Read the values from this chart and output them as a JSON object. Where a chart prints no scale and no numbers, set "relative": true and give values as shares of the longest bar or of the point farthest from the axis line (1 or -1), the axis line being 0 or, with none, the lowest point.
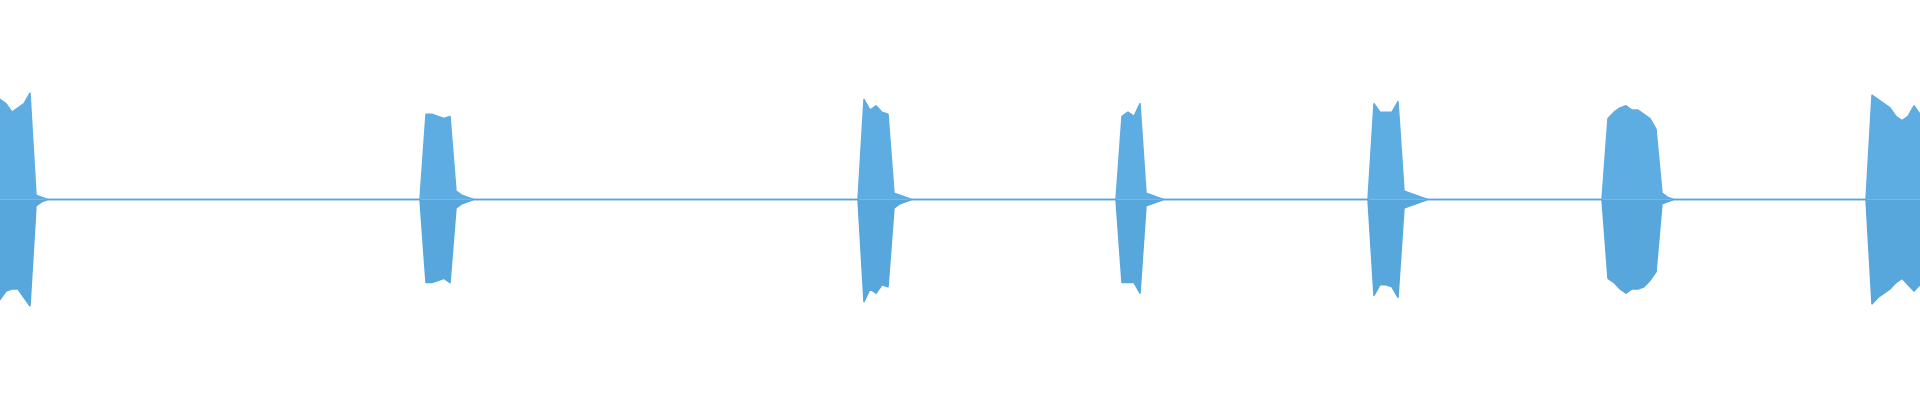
{
  "chart_data": {
    "type": "area",
    "relative": true,
    "tick_labels": false,
    "categories": [
      null,
      null,
      null,
      null,
      null,
      null,
      null,
      null,
      null,
      null,
      null,
      null,
      null,
      null,
      null,
      null,
      null,
      null,
      null,
      null,
      null,
      null,
      null,
      null,
      null,
      null,
      null,
      null,
      null,
      null,
      null,
      null,
      null,
      null,
      null,
      null,
      null,
      null,
      null,
      null,
      null,
      null,
      null,
      null,
      null,
      null,
      null,
      null,
      null,
      null,
      null,
      null,
      null,
      null,
      null,
      null,
      null,
      null,
      null,
      null,
      null,
      null,
      null,
      null,
      null,
      null,
      null,
      null,
      null,
      null,
      null,
      null,
      null,
      null,
      null,
      null,
      null,
      null,
      null,
      null,
      null,
      null,
      null,
      null,
      null,
      null,
      null,
      null,
      null,
      null,
      null,
      null,
      null,
      null,
      null,
      null,
      null,
      null,
      null,
      null,
      null,
      null,
      null,
      null,
      null,
      null,
      null,
      null,
      null,
      null,
      null,
      null,
      null,
      null,
      null,
      null,
      null,
      null,
      null,
      null,
      null,
      null,
      null,
      null,
      null,
      null,
      null,
      null,
      null,
      null,
      null,
      null,
      null,
      null,
      null,
      null,
      null,
      null,
      null,
      null,
      null,
      null,
      null,
      null,
      null,
      null,
      null,
      null,
      null,
      null,
      null,
      null,
      null,
      null,
      null,
      null,
      null,
      null,
      null,
      null,
      null,
      null,
      null,
      null,
      null,
      null,
      null,
      null,
      null,
      null,
      null,
      null,
      null,
      null,
      null,
      null,
      null,
      null,
      null,
      null,
      null,
      null,
      null,
      null,
      null,
      null,
      null,
      null,
      null,
      null,
      null,
      null,
      null,
      null,
      null,
      null,
      null,
      null,
      null,
      null,
      null,
      null,
      null,
      null,
      null,
      null,
      null,
      null,
      null,
      null,
      null,
      null,
      null,
      null,
      null,
      null,
      null,
      null,
      null,
      null,
      null,
      null,
      null,
      null,
      null,
      null,
      null,
      null,
      null,
      null,
      null,
      null,
      null,
      null,
      null,
      null,
      null,
      null,
      null,
      null,
      null,
      null,
      null,
      null,
      null,
      null,
      null,
      null,
      null,
      null,
      null,
      null,
      null,
      null,
      null,
      null,
      null,
      null,
      null,
      null,
      null,
      null,
      null,
      null,
      null,
      null,
      null,
      null,
      null,
      null,
      null,
      null,
      null,
      null,
      null,
      null,
      null,
      null,
      null,
      null,
      null,
      null,
      null,
      null,
      null,
      null,
      null,
      null,
      null,
      null,
      null,
      null,
      null,
      null,
      null,
      null,
      null,
      null,
      null,
      null,
      null,
      null,
      null,
      null,
      null,
      null,
      null,
      null,
      null,
      null,
      null,
      null,
      null,
      null,
      null,
      null,
      null,
      null,
      null,
      null,
      null
    ],
    "series": [
      {
        "color": "#5dade2",
        "values": [
          0.94,
          0.9,
          0.82,
          0.86,
          0.9,
          1.0,
          0.04,
          0.02,
          0,
          0,
          0,
          0,
          0,
          0,
          0,
          0,
          0,
          0,
          0,
          0,
          0,
          0,
          0,
          0,
          0,
          0,
          0,
          0,
          0,
          0,
          0,
          0,
          0,
          0,
          0,
          0,
          0,
          0,
          0,
          0,
          0,
          0,
          0,
          0,
          0,
          0,
          0,
          0,
          0,
          0,
          0,
          0,
          0,
          0,
          0,
          0,
          0,
          0,
          0,
          0,
          0,
          0,
          0,
          0,
          0,
          0,
          0,
          0,
          0,
          0,
          0,
          0.8,
          0.8,
          0.78,
          0.76,
          0.78,
          0.08,
          0.04,
          0.02,
          0,
          0,
          0,
          0,
          0,
          0,
          0,
          0,
          0,
          0,
          0,
          0,
          0,
          0,
          0,
          0,
          0,
          0,
          0,
          0,
          0,
          0,
          0,
          0,
          0,
          0,
          0,
          0,
          0,
          0,
          0,
          0,
          0,
          0,
          0,
          0,
          0,
          0,
          0,
          0,
          0,
          0,
          0,
          0,
          0,
          0,
          0,
          0,
          0,
          0,
          0,
          0,
          0,
          0,
          0,
          0,
          0,
          0,
          0,
          0,
          0,
          0,
          0,
          0,
          0,
          0.94,
          0.84,
          0.88,
          0.82,
          0.8,
          0.06,
          0.04,
          0.02,
          0,
          0,
          0,
          0,
          0,
          0,
          0,
          0,
          0,
          0,
          0,
          0,
          0,
          0,
          0,
          0,
          0,
          0,
          0,
          0,
          0,
          0,
          0,
          0,
          0,
          0,
          0,
          0,
          0,
          0,
          0,
          0,
          0,
          0,
          0,
          0.78,
          0.82,
          0.78,
          0.9,
          0.06,
          0.04,
          0.02,
          0,
          0,
          0,
          0,
          0,
          0,
          0,
          0,
          0,
          0,
          0,
          0,
          0,
          0,
          0,
          0,
          0,
          0,
          0,
          0,
          0,
          0,
          0,
          0,
          0,
          0,
          0,
          0,
          0,
          0,
          0,
          0,
          0,
          0,
          0,
          0.9,
          0.82,
          0.82,
          0.82,
          0.92,
          0.08,
          0.06,
          0.04,
          0.02,
          0,
          0,
          0,
          0,
          0,
          0,
          0,
          0,
          0,
          0,
          0,
          0,
          0,
          0,
          0,
          0,
          0,
          0,
          0,
          0,
          0,
          0,
          0,
          0,
          0,
          0,
          0,
          0,
          0,
          0,
          0.76,
          0.82,
          0.86,
          0.88,
          0.84,
          0.84,
          0.8,
          0.76,
          0.66,
          0.06,
          0.02,
          0,
          0,
          0,
          0,
          0,
          0,
          0,
          0,
          0,
          0,
          0,
          0,
          0,
          0,
          0,
          0,
          0,
          0,
          0,
          0,
          0,
          0,
          0,
          0,
          0,
          0,
          0,
          0,
          0,
          0,
          0,
          0,
          0,
          0.98,
          0.94,
          0.9,
          0.86,
          0.78,
          0.74,
          0.78,
          0.88,
          0.8
        ]
      },
      {
        "color": "#57a7dc",
        "values": [
          -0.94,
          -0.86,
          -0.84,
          -0.84,
          -0.92,
          -1.0,
          -0.06,
          -0.02,
          0,
          0,
          0,
          0,
          0,
          0,
          0,
          0,
          0,
          0,
          0,
          0,
          0,
          0,
          0,
          0,
          0,
          0,
          0,
          0,
          0,
          0,
          0,
          0,
          0,
          0,
          0,
          0,
          0,
          0,
          0,
          0,
          0,
          0,
          0,
          0,
          0,
          0,
          0,
          0,
          0,
          0,
          0,
          0,
          0,
          0,
          0,
          0,
          0,
          0,
          0,
          0,
          0,
          0,
          0,
          0,
          0,
          0,
          0,
          0,
          0,
          0,
          0,
          -0.78,
          -0.78,
          -0.76,
          -0.74,
          -0.78,
          -0.08,
          -0.04,
          -0.02,
          0,
          0,
          0,
          0,
          0,
          0,
          0,
          0,
          0,
          0,
          0,
          0,
          0,
          0,
          0,
          0,
          0,
          0,
          0,
          0,
          0,
          0,
          0,
          0,
          0,
          0,
          0,
          0,
          0,
          0,
          0,
          0,
          0,
          0,
          0,
          0,
          0,
          0,
          0,
          0,
          0,
          0,
          0,
          0,
          0,
          0,
          0,
          0,
          0,
          0,
          0,
          0,
          0,
          0,
          0,
          0,
          0,
          0,
          0,
          0,
          0,
          0,
          0,
          0,
          0,
          -0.96,
          -0.84,
          -0.88,
          -0.8,
          -0.82,
          -0.08,
          -0.04,
          -0.02,
          0,
          0,
          0,
          0,
          0,
          0,
          0,
          0,
          0,
          0,
          0,
          0,
          0,
          0,
          0,
          0,
          0,
          0,
          0,
          0,
          0,
          0,
          0,
          0,
          0,
          0,
          0,
          0,
          0,
          0,
          0,
          0,
          0,
          0,
          0,
          -0.78,
          -0.78,
          -0.78,
          -0.88,
          -0.06,
          -0.04,
          -0.02,
          0,
          0,
          0,
          0,
          0,
          0,
          0,
          0,
          0,
          0,
          0,
          0,
          0,
          0,
          0,
          0,
          0,
          0,
          0,
          0,
          0,
          0,
          0,
          0,
          0,
          0,
          0,
          0,
          0,
          0,
          0,
          0,
          0,
          0,
          0,
          -0.9,
          -0.8,
          -0.8,
          -0.82,
          -0.92,
          -0.08,
          -0.06,
          -0.04,
          -0.02,
          0,
          0,
          0,
          0,
          0,
          0,
          0,
          0,
          0,
          0,
          0,
          0,
          0,
          0,
          0,
          0,
          0,
          0,
          0,
          0,
          0,
          0,
          0,
          0,
          0,
          0,
          0,
          0,
          0,
          0,
          -0.74,
          -0.78,
          -0.84,
          -0.88,
          -0.84,
          -0.84,
          -0.82,
          -0.76,
          -0.68,
          -0.04,
          -0.02,
          0,
          0,
          0,
          0,
          0,
          0,
          0,
          0,
          0,
          0,
          0,
          0,
          0,
          0,
          0,
          0,
          0,
          0,
          0,
          0,
          0,
          0,
          0,
          0,
          0,
          0,
          0,
          0,
          0,
          0,
          0,
          0,
          0,
          -0.98,
          -0.92,
          -0.88,
          -0.84,
          -0.78,
          -0.74,
          -0.8,
          -0.86,
          -0.8
        ]
      }
    ]
  }
}
